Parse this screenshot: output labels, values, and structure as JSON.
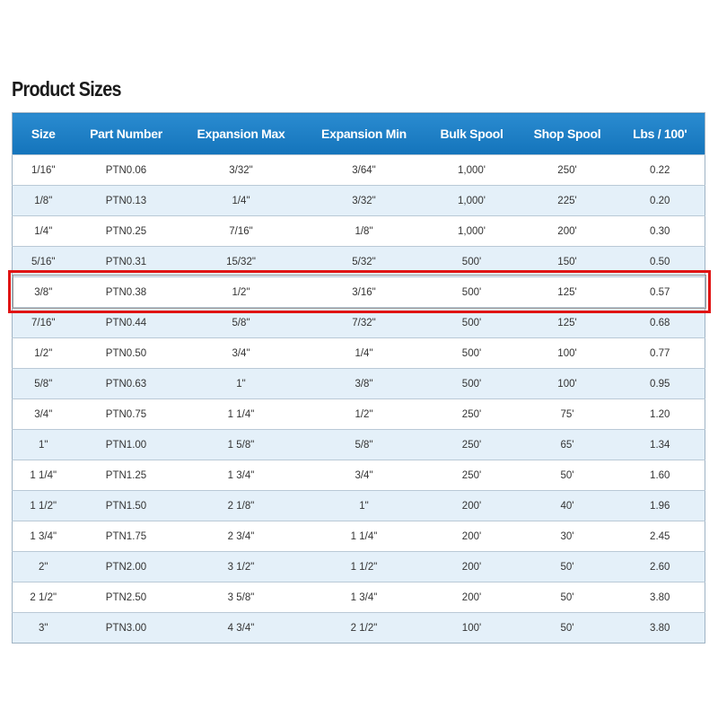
{
  "title": "Product Sizes",
  "table": {
    "headers": [
      "Size",
      "Part Number",
      "Expansion Max",
      "Expansion Min",
      "Bulk Spool",
      "Shop Spool",
      "Lbs / 100'"
    ],
    "rows": [
      [
        "1/16\"",
        "PTN0.06",
        "3/32\"",
        "3/64\"",
        "1,000'",
        "250'",
        "0.22"
      ],
      [
        "1/8\"",
        "PTN0.13",
        "1/4\"",
        "3/32\"",
        "1,000'",
        "225'",
        "0.20"
      ],
      [
        "1/4\"",
        "PTN0.25",
        "7/16\"",
        "1/8\"",
        "1,000'",
        "200'",
        "0.30"
      ],
      [
        "5/16\"",
        "PTN0.31",
        "15/32\"",
        "5/32\"",
        "500'",
        "150'",
        "0.50"
      ],
      [
        "3/8\"",
        "PTN0.38",
        "1/2\"",
        "3/16\"",
        "500'",
        "125'",
        "0.57"
      ],
      [
        "7/16\"",
        "PTN0.44",
        "5/8\"",
        "7/32\"",
        "500'",
        "125'",
        "0.68"
      ],
      [
        "1/2\"",
        "PTN0.50",
        "3/4\"",
        "1/4\"",
        "500'",
        "100'",
        "0.77"
      ],
      [
        "5/8\"",
        "PTN0.63",
        "1\"",
        "3/8\"",
        "500'",
        "100'",
        "0.95"
      ],
      [
        "3/4\"",
        "PTN0.75",
        "1 1/4\"",
        "1/2\"",
        "250'",
        "75'",
        "1.20"
      ],
      [
        "1\"",
        "PTN1.00",
        "1 5/8\"",
        "5/8\"",
        "250'",
        "65'",
        "1.34"
      ],
      [
        "1 1/4\"",
        "PTN1.25",
        "1 3/4\"",
        "3/4\"",
        "250'",
        "50'",
        "1.60"
      ],
      [
        "1 1/2\"",
        "PTN1.50",
        "2 1/8\"",
        "1\"",
        "200'",
        "40'",
        "1.96"
      ],
      [
        "1 3/4\"",
        "PTN1.75",
        "2 3/4\"",
        "1 1/4\"",
        "200'",
        "30'",
        "2.45"
      ],
      [
        "2\"",
        "PTN2.00",
        "3 1/2\"",
        "1 1/2\"",
        "200'",
        "50'",
        "2.60"
      ],
      [
        "2 1/2\"",
        "PTN2.50",
        "3 5/8\"",
        "1 3/4\"",
        "200'",
        "50'",
        "3.80"
      ],
      [
        "3\"",
        "PTN3.00",
        "4 3/4\"",
        "2 1/2\"",
        "100'",
        "50'",
        "3.80"
      ]
    ]
  }
}
